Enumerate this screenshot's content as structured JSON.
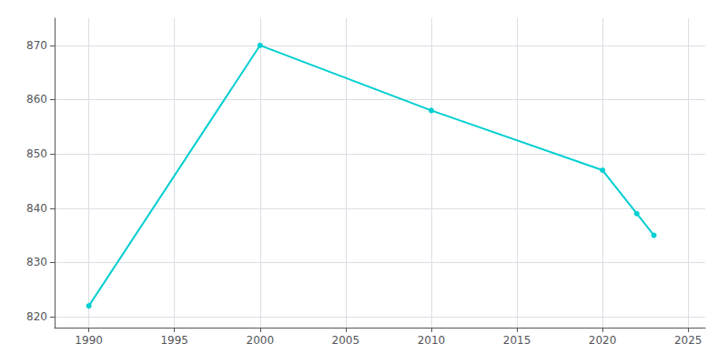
{
  "chart_data": {
    "type": "line",
    "x": [
      1990,
      2000,
      2010,
      2020,
      2022,
      2023
    ],
    "values": [
      822,
      870,
      858,
      847,
      839,
      835
    ],
    "color": "#00CED1",
    "marker": "circle",
    "xlim": [
      1988,
      2026
    ],
    "xticks": [
      1990,
      1995,
      2000,
      2005,
      2010,
      2015,
      2020,
      2025
    ],
    "ylim": [
      818,
      875
    ],
    "yticks": [
      820,
      830,
      840,
      850,
      860,
      870
    ],
    "grid": true
  }
}
